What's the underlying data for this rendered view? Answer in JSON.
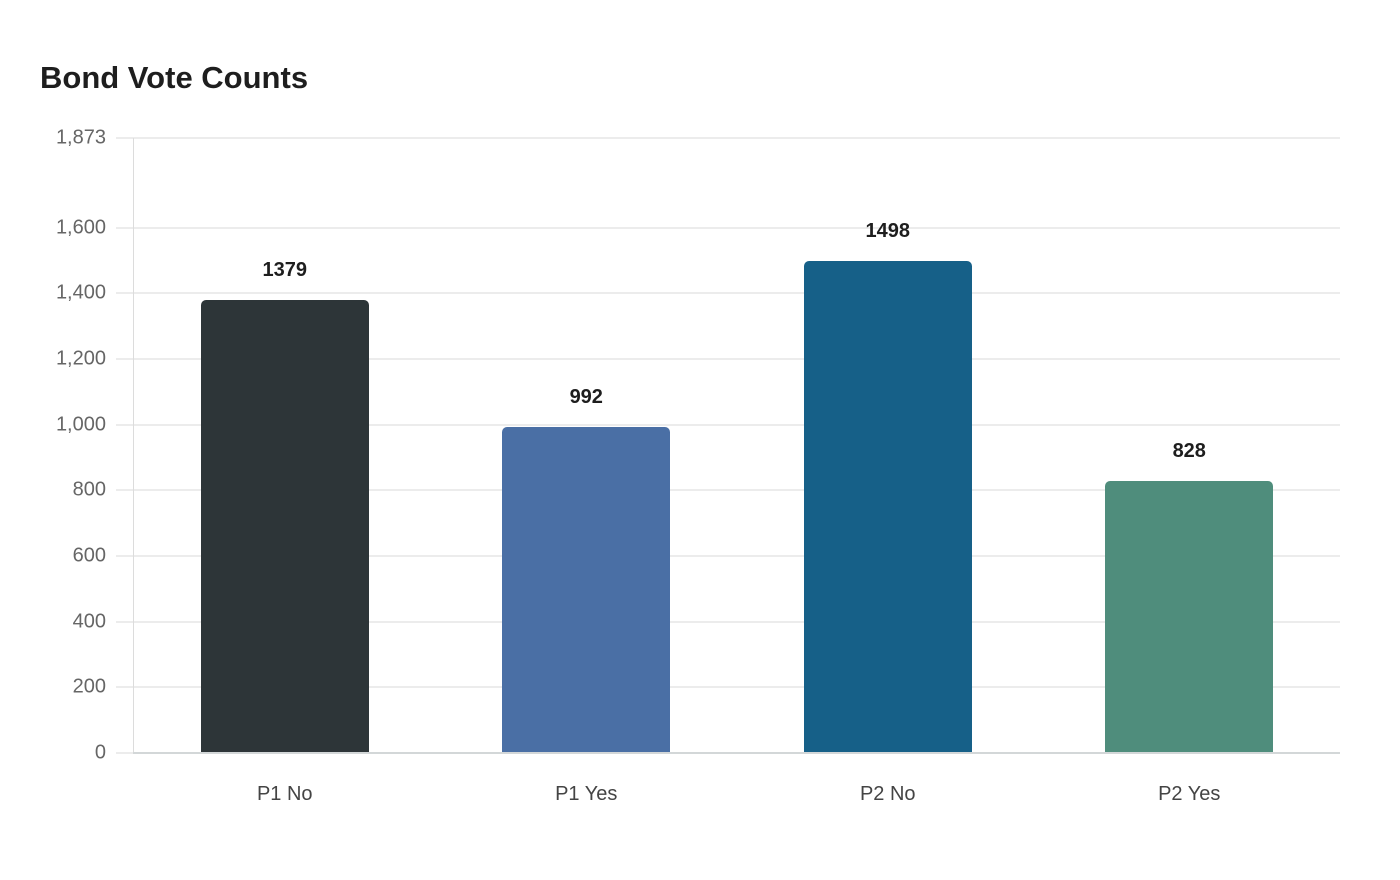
{
  "title": "Bond Vote Counts",
  "chart_data": {
    "type": "bar",
    "title": "Bond Vote Counts",
    "xlabel": "",
    "ylabel": "",
    "categories": [
      "P1 No",
      "P1 Yes",
      "P2 No",
      "P2 Yes"
    ],
    "values": [
      1379,
      992,
      1498,
      828
    ],
    "colors": [
      "#2d3538",
      "#4a6fa5",
      "#166088",
      "#4f8d7c"
    ],
    "ylim": [
      0,
      1873
    ],
    "yticks": [
      0,
      200,
      400,
      600,
      800,
      1000,
      1200,
      1400,
      1600,
      1873
    ],
    "ytick_labels": [
      "0",
      "200",
      "400",
      "600",
      "800",
      "1,000",
      "1,200",
      "1,400",
      "1,600",
      "1,873"
    ],
    "grid": true,
    "legend": null,
    "data_labels": [
      "1379",
      "992",
      "1498",
      "828"
    ]
  }
}
